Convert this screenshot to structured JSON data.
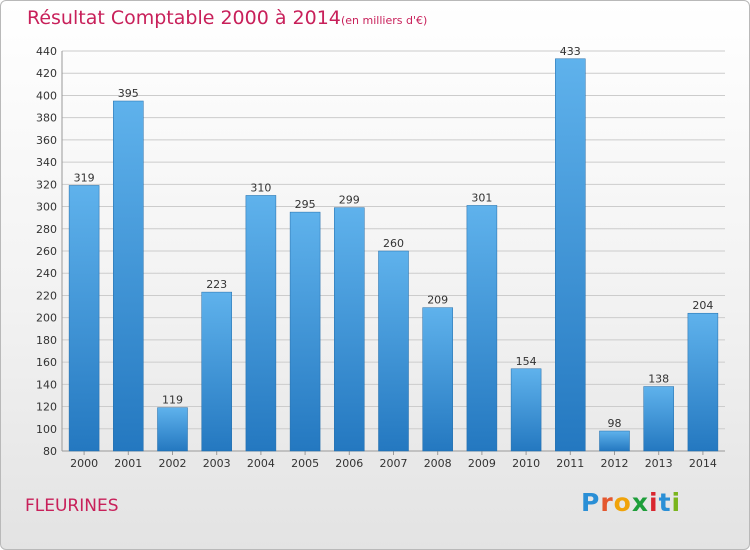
{
  "title": "Résultat Comptable 2000 à 2014",
  "subtitle": "(en milliers d'€)",
  "commune": "FLEURINES",
  "logo": {
    "text": "Proxiti",
    "letter_colors": [
      "#2a8fd6",
      "#e4572e",
      "#f0a30a",
      "#1e9e3a",
      "#d9262f",
      "#2a8fd6",
      "#7ab51d"
    ]
  },
  "colors": {
    "bar_top": "#5fb2ec",
    "bar_bottom": "#2478c0",
    "title": "#c8205a",
    "grid": "#cccccc"
  },
  "chart_data": {
    "type": "bar",
    "title": "Résultat Comptable 2000 à 2014",
    "subtitle": "(en milliers d'€)",
    "xlabel": "",
    "ylabel": "",
    "categories": [
      "2000",
      "2001",
      "2002",
      "2003",
      "2004",
      "2005",
      "2006",
      "2007",
      "2008",
      "2009",
      "2010",
      "2011",
      "2012",
      "2013",
      "2014"
    ],
    "values": [
      319,
      395,
      119,
      223,
      310,
      295,
      299,
      260,
      209,
      301,
      154,
      433,
      98,
      138,
      204
    ],
    "ylim": [
      80,
      440
    ],
    "yticks": [
      80,
      100,
      120,
      140,
      160,
      180,
      200,
      220,
      240,
      260,
      280,
      300,
      320,
      340,
      360,
      380,
      400,
      420,
      440
    ],
    "grid": true,
    "legend": "none"
  }
}
